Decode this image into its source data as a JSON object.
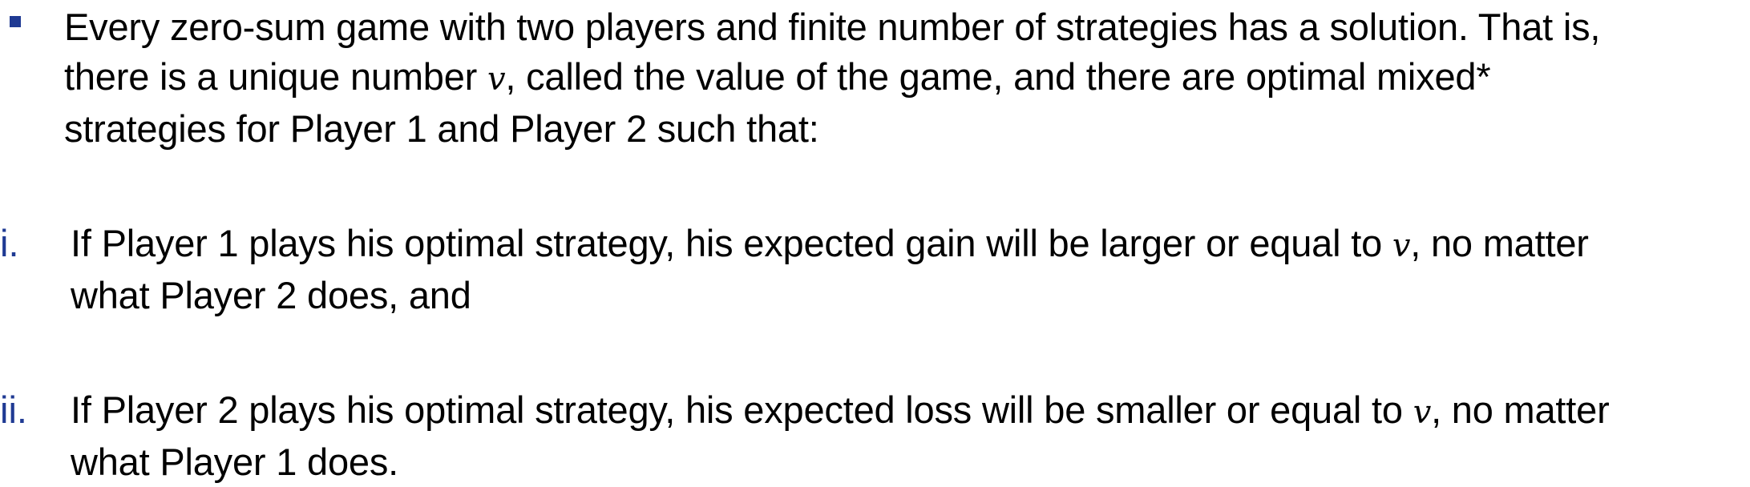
{
  "colors": {
    "bullet": "#1f3a93",
    "roman_marker": "#1f3a93",
    "text": "#000000"
  },
  "main_point": {
    "bullet_icon": "square-bullet-icon",
    "line1": "Every zero-sum game with two players and finite number of strategies has a solution. That is,",
    "line2_before": "there is a unique number ",
    "line2_var": "v",
    "line2_after": ", called the value of the game, and there are optimal mixed*",
    "line3": "strategies for Player 1 and Player 2 such that:"
  },
  "conditions": [
    {
      "marker": "i.",
      "line1_before": "If Player 1 plays his optimal strategy, his expected gain will be larger or equal to ",
      "line1_var": "v",
      "line1_after": ", no matter",
      "line2": "what Player 2 does, and"
    },
    {
      "marker": "ii.",
      "line1_before": "If Player 2 plays his optimal strategy, his expected loss will be smaller or equal to ",
      "line1_var": "v",
      "line1_after": ", no matter",
      "line2": "what Player 1 does."
    }
  ]
}
